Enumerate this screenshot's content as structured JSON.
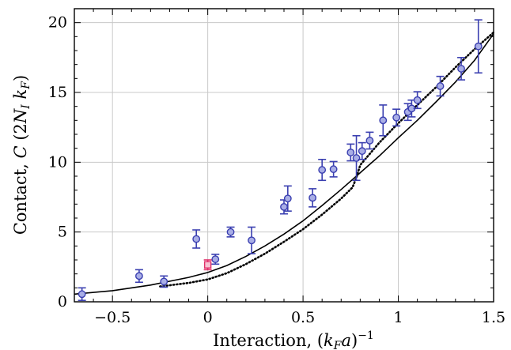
{
  "chart_data": {
    "type": "scatter",
    "xlabel": "Interaction, (k_F a)^{-1}",
    "ylabel": "Contact, C (2N_I k_F)",
    "xlim": [
      -0.7,
      1.5
    ],
    "ylim": [
      0,
      21
    ],
    "xticks": [
      -0.5,
      0,
      0.5,
      1,
      1.5
    ],
    "xtick_labels": [
      "−0.5",
      "0",
      "0.5",
      "1",
      "1.5"
    ],
    "yticks": [
      0,
      5,
      10,
      15,
      20
    ],
    "ytick_labels": [
      "0",
      "5",
      "10",
      "15",
      "20"
    ],
    "grid": true,
    "colors": {
      "points_edge": "#3a3fb0",
      "points_fill": "#a9aee6",
      "highlight": "#e0306a",
      "curve": "#000000",
      "grid": "#c8c8c8"
    },
    "series": [
      {
        "type": "errorbar-scatter",
        "points": [
          {
            "x": -0.66,
            "y": 0.55,
            "err": 0.45
          },
          {
            "x": -0.36,
            "y": 1.85,
            "err": 0.45
          },
          {
            "x": -0.23,
            "y": 1.45,
            "err": 0.4
          },
          {
            "x": -0.06,
            "y": 4.5,
            "err": 0.65
          },
          {
            "x": 0.04,
            "y": 3.05,
            "err": 0.35
          },
          {
            "x": 0.12,
            "y": 5.0,
            "err": 0.35
          },
          {
            "x": 0.23,
            "y": 4.4,
            "err": 0.95
          },
          {
            "x": 0.4,
            "y": 6.8,
            "err": 0.5
          },
          {
            "x": 0.42,
            "y": 7.4,
            "err": 0.9
          },
          {
            "x": 0.55,
            "y": 7.45,
            "err": 0.65
          },
          {
            "x": 0.6,
            "y": 9.45,
            "err": 0.75
          },
          {
            "x": 0.66,
            "y": 9.5,
            "err": 0.55
          },
          {
            "x": 0.75,
            "y": 10.7,
            "err": 0.6
          },
          {
            "x": 0.78,
            "y": 10.3,
            "err": 1.6
          },
          {
            "x": 0.81,
            "y": 10.8,
            "err": 0.6
          },
          {
            "x": 0.85,
            "y": 11.55,
            "err": 0.6
          },
          {
            "x": 0.92,
            "y": 13.0,
            "err": 1.1
          },
          {
            "x": 0.99,
            "y": 13.2,
            "err": 0.6
          },
          {
            "x": 1.05,
            "y": 13.6,
            "err": 0.6
          },
          {
            "x": 1.07,
            "y": 13.85,
            "err": 0.6
          },
          {
            "x": 1.1,
            "y": 14.45,
            "err": 0.6
          },
          {
            "x": 1.22,
            "y": 15.45,
            "err": 0.7
          },
          {
            "x": 1.33,
            "y": 16.7,
            "err": 0.8
          },
          {
            "x": 1.42,
            "y": 18.3,
            "err": 1.9
          }
        ]
      },
      {
        "type": "highlight-point",
        "points": [
          {
            "x": 0.0,
            "y": 2.65,
            "err": 0.35
          }
        ]
      },
      {
        "type": "solid-line",
        "x": [
          -0.7,
          -0.5,
          -0.3,
          -0.1,
          0.0,
          0.1,
          0.2,
          0.3,
          0.4,
          0.5,
          0.6,
          0.7,
          0.8,
          0.9,
          1.0,
          1.1,
          1.2,
          1.3,
          1.4,
          1.5
        ],
        "y": [
          0.55,
          0.8,
          1.2,
          1.75,
          2.1,
          2.6,
          3.25,
          4.0,
          4.85,
          5.8,
          6.9,
          8.05,
          9.25,
          10.45,
          11.75,
          13.0,
          14.35,
          15.75,
          17.3,
          19.2
        ]
      },
      {
        "type": "dotted-line",
        "x": [
          -0.25,
          -0.1,
          0.0,
          0.1,
          0.2,
          0.3,
          0.4,
          0.5,
          0.6,
          0.7,
          0.76,
          0.78,
          0.8,
          0.9,
          1.0,
          1.1,
          1.2,
          1.3,
          1.4,
          1.5
        ],
        "y": [
          1.1,
          1.35,
          1.6,
          2.05,
          2.7,
          3.45,
          4.3,
          5.2,
          6.25,
          7.4,
          8.2,
          8.9,
          9.8,
          11.4,
          12.8,
          14.1,
          15.4,
          16.8,
          18.1,
          19.3
        ]
      }
    ]
  }
}
